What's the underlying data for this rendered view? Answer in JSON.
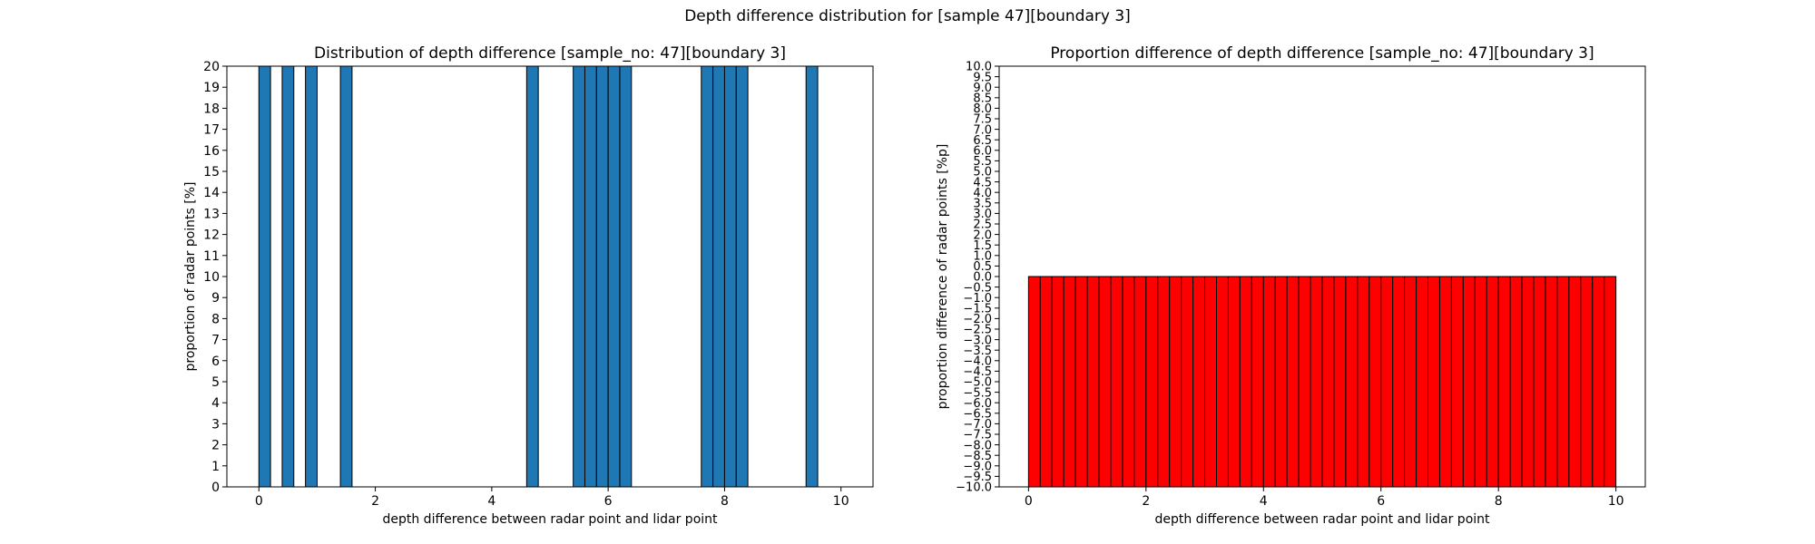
{
  "suptitle": "Depth difference distribution for [sample 47][boundary 3]",
  "colors": {
    "left_bar": "#1f77b4",
    "right_bar": "#ff0000",
    "edge": "#000000"
  },
  "chart_data": [
    {
      "type": "bar",
      "title": "Distribution of depth difference [sample_no: 47][boundary 3]",
      "xlabel": "depth difference between radar point and lidar point",
      "ylabel": "proportion of radar points [%]",
      "xlim": [
        -0.55,
        10.55
      ],
      "ylim": [
        0,
        20
      ],
      "xticks": [
        0,
        2,
        4,
        6,
        8,
        10
      ],
      "yticks": [
        0,
        1,
        2,
        3,
        4,
        5,
        6,
        7,
        8,
        9,
        10,
        11,
        12,
        13,
        14,
        15,
        16,
        17,
        18,
        19,
        20
      ],
      "bin_width": 0.2,
      "bar_left_edges": [
        0.0,
        0.4,
        0.8,
        1.4,
        4.6,
        5.4,
        5.6,
        5.8,
        6.0,
        6.2,
        7.6,
        7.8,
        8.0,
        8.2,
        9.4
      ],
      "values": [
        20,
        20,
        20,
        20,
        20,
        20,
        20,
        20,
        20,
        20,
        20,
        20,
        20,
        20,
        20
      ],
      "grid": false
    },
    {
      "type": "bar",
      "title": "Proportion difference of depth difference [sample_no: 47][boundary 3]",
      "xlabel": "depth difference between radar point and lidar point",
      "ylabel": "proportion difference of radar points [%p]",
      "xlim": [
        -0.5,
        10.5
      ],
      "ylim": [
        -10,
        10
      ],
      "xticks": [
        0,
        2,
        4,
        6,
        8,
        10
      ],
      "ytick_step": 0.5,
      "bin_width": 0.2,
      "bin_start": 0,
      "bin_end": 10,
      "values": [
        0,
        0,
        0,
        0,
        0,
        0,
        0,
        0,
        0,
        0,
        0,
        0,
        0,
        0,
        0,
        0,
        0,
        0,
        0,
        0,
        0,
        0,
        0,
        0,
        0,
        0,
        0,
        0,
        0,
        0,
        0,
        0,
        0,
        0,
        0,
        0,
        0,
        0,
        0,
        0,
        0,
        0,
        0,
        0,
        0,
        0,
        0,
        0,
        0,
        0
      ],
      "bar_bottom": -10,
      "grid": false
    }
  ]
}
